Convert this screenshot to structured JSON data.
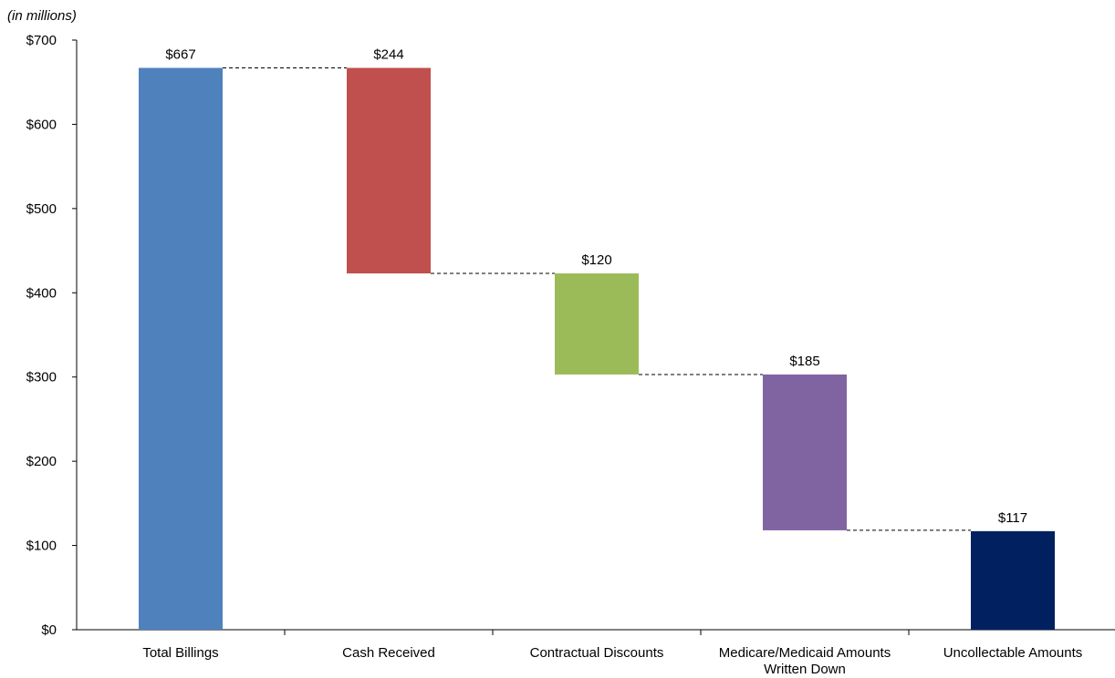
{
  "chart_data": {
    "type": "bar",
    "subtype": "waterfall",
    "unit_note": "(in millions)",
    "categories": [
      [
        "Total Billings"
      ],
      [
        "Cash Received"
      ],
      [
        "Contractual Discounts"
      ],
      [
        "Medicare/Medicaid Amounts",
        "Written Down"
      ],
      [
        "Uncollectable Amounts"
      ]
    ],
    "bars": [
      {
        "base": 0,
        "top": 667,
        "label": "$667",
        "color": "#4f81bd"
      },
      {
        "base": 423,
        "top": 667,
        "label": "$244",
        "color": "#c0504d"
      },
      {
        "base": 303,
        "top": 423,
        "label": "$120",
        "color": "#9bbb59"
      },
      {
        "base": 118,
        "top": 303,
        "label": "$185",
        "color": "#8064a2"
      },
      {
        "base": 0,
        "top": 117,
        "label": "$117",
        "color": "#002060"
      }
    ],
    "connectors": [
      667,
      423,
      303,
      118
    ],
    "ylim": [
      0,
      700
    ],
    "yticks": [
      {
        "value": 0,
        "label": "$0"
      },
      {
        "value": 100,
        "label": "$100"
      },
      {
        "value": 200,
        "label": "$200"
      },
      {
        "value": 300,
        "label": "$300"
      },
      {
        "value": 400,
        "label": "$400"
      },
      {
        "value": 500,
        "label": "$500"
      },
      {
        "value": 600,
        "label": "$600"
      },
      {
        "value": 700,
        "label": "$700"
      }
    ],
    "grid": false,
    "legend": "none"
  }
}
